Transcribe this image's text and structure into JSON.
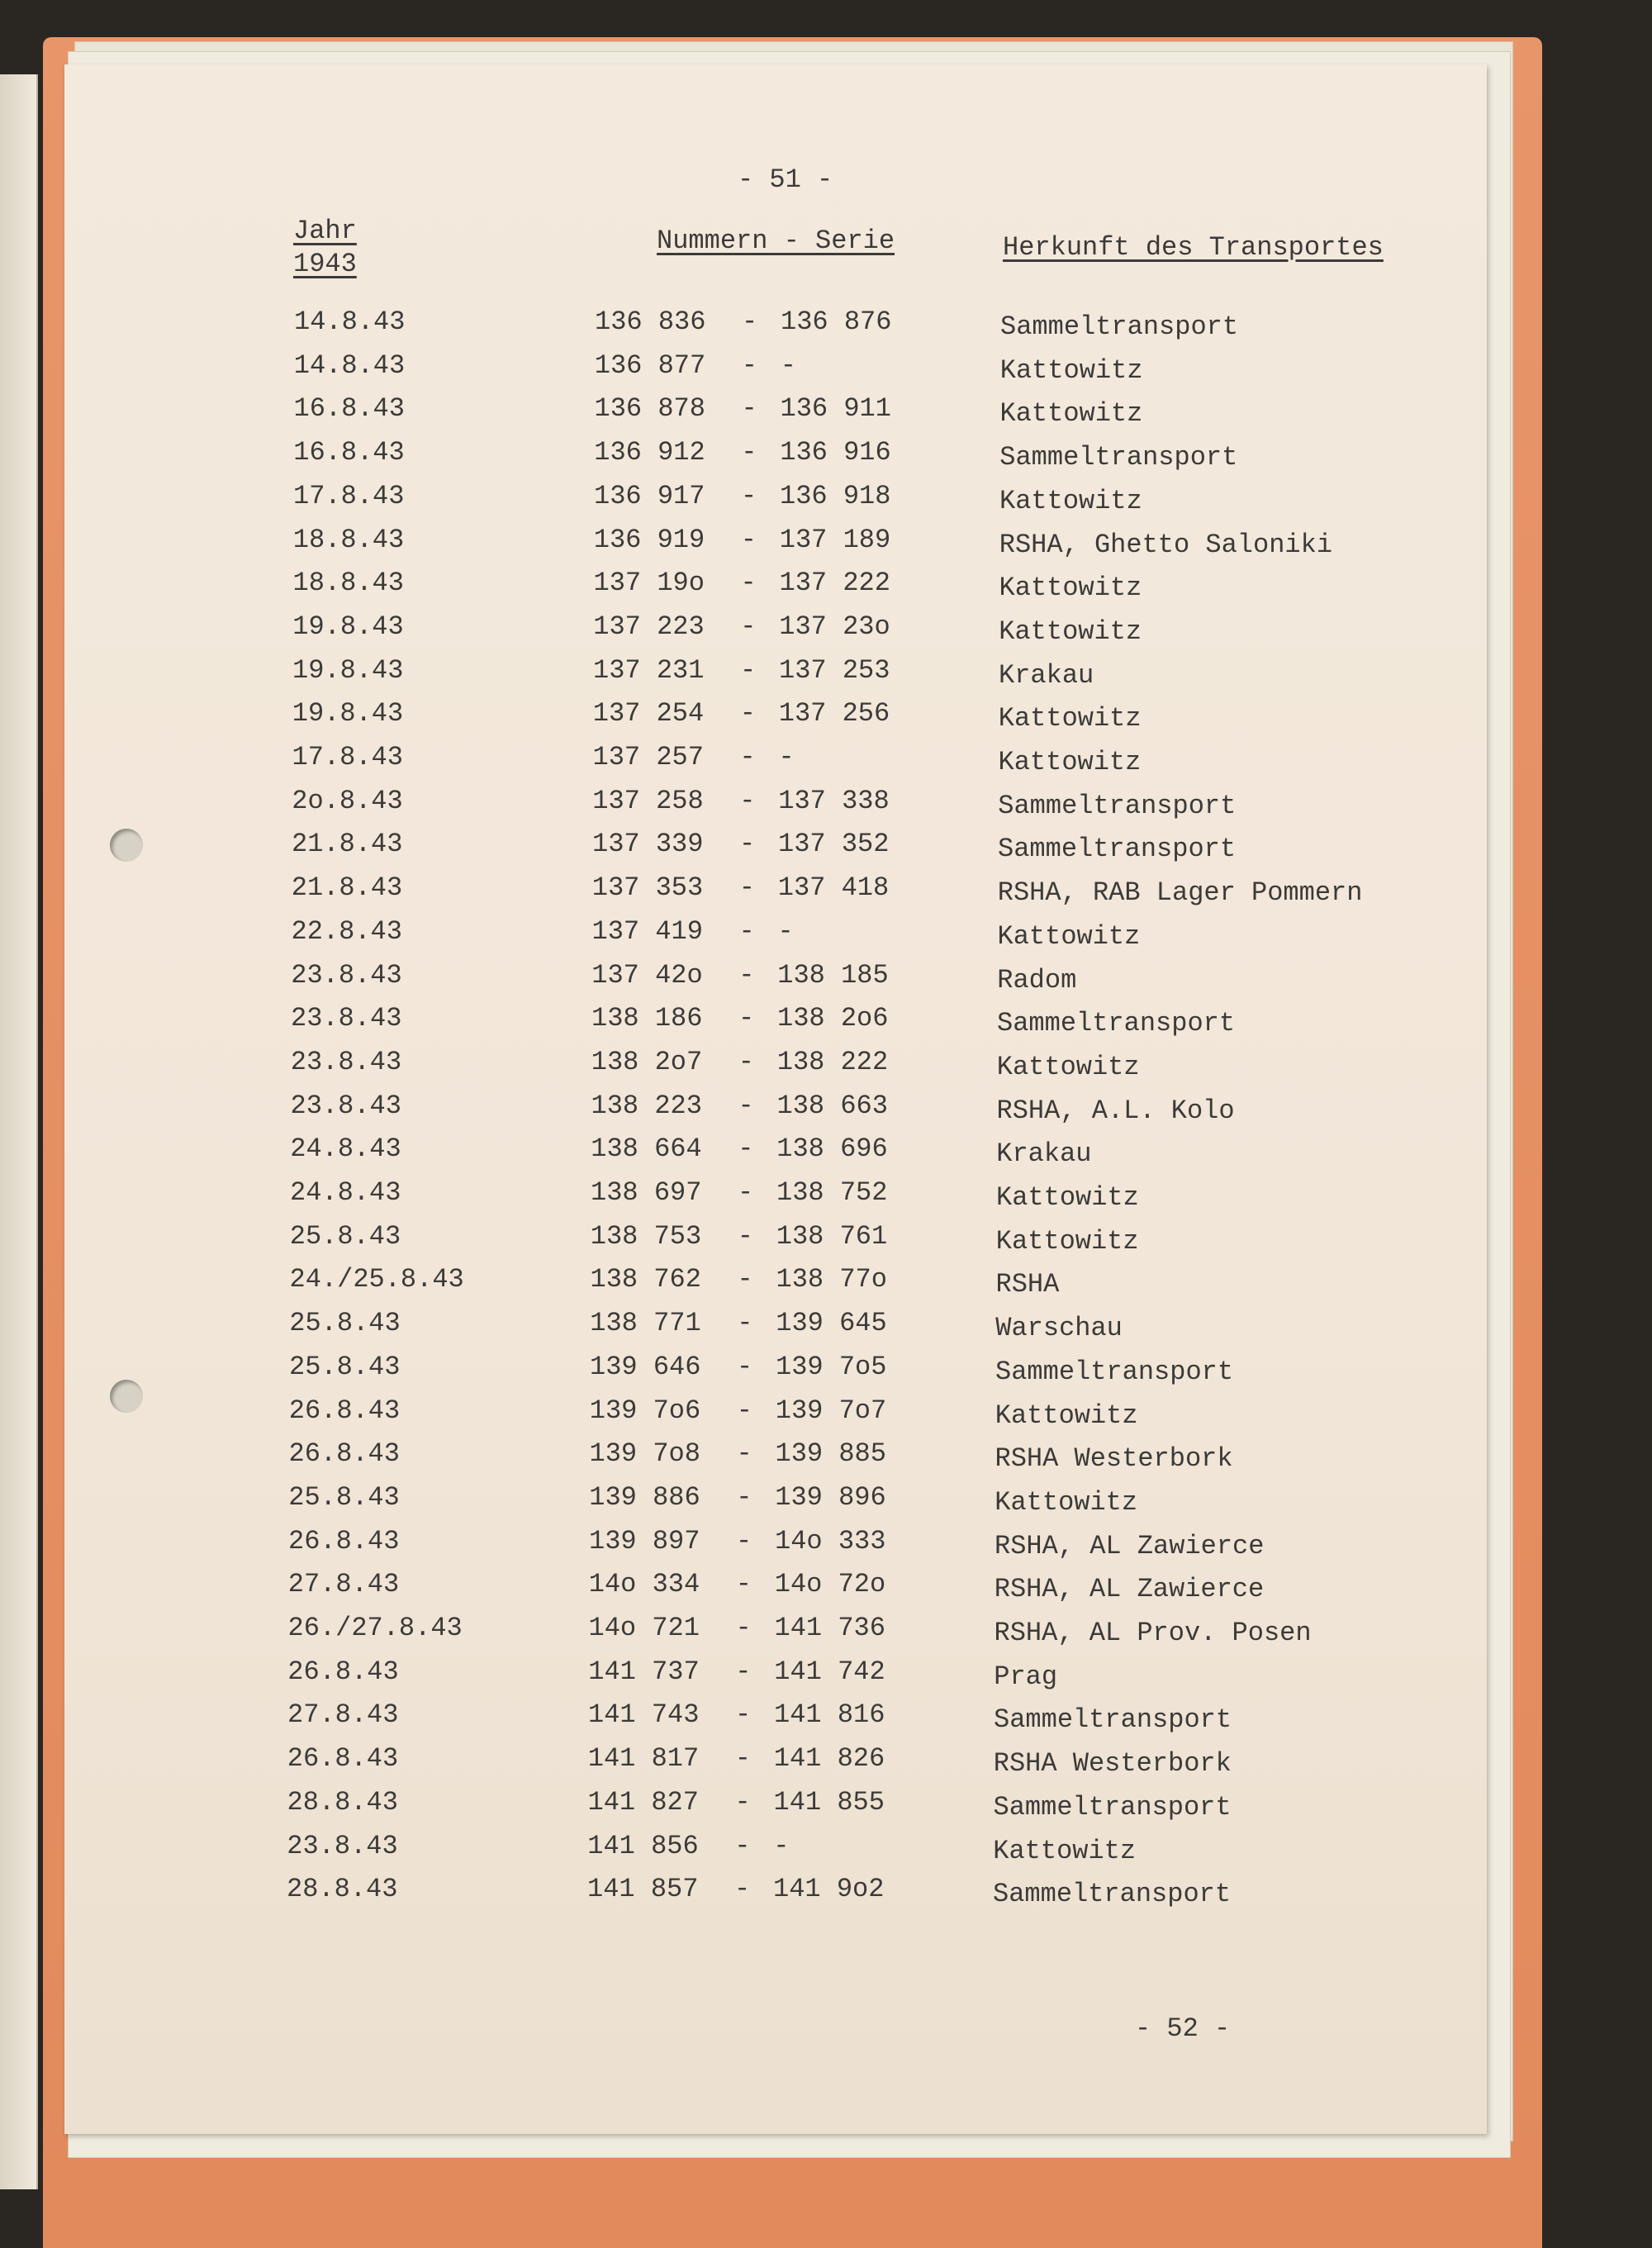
{
  "page_top": "- 51 -",
  "page_bottom": "- 52 -",
  "headers": {
    "year": "Jahr",
    "year_value": "1943",
    "numbers": "Nummern - Serie",
    "origin": "Herkunft des Transportes"
  },
  "rows": [
    {
      "date": "14.8.43",
      "from": "136 836",
      "to": "136 876",
      "origin": "Sammeltransport"
    },
    {
      "date": "14.8.43",
      "from": "136 877",
      "to": "-",
      "origin": "Kattowitz"
    },
    {
      "date": "16.8.43",
      "from": "136 878",
      "to": "136 911",
      "origin": "Kattowitz"
    },
    {
      "date": "16.8.43",
      "from": "136 912",
      "to": "136 916",
      "origin": "Sammeltransport"
    },
    {
      "date": "17.8.43",
      "from": "136 917",
      "to": "136 918",
      "origin": "Kattowitz"
    },
    {
      "date": "18.8.43",
      "from": "136 919",
      "to": "137 189",
      "origin": "RSHA, Ghetto Saloniki"
    },
    {
      "date": "18.8.43",
      "from": "137 19o",
      "to": "137 222",
      "origin": "Kattowitz"
    },
    {
      "date": "19.8.43",
      "from": "137 223",
      "to": "137 23o",
      "origin": "Kattowitz"
    },
    {
      "date": "19.8.43",
      "from": "137 231",
      "to": "137 253",
      "origin": "Krakau"
    },
    {
      "date": "19.8.43",
      "from": "137 254",
      "to": "137 256",
      "origin": "Kattowitz"
    },
    {
      "date": "17.8.43",
      "from": "137 257",
      "to": "-",
      "origin": "Kattowitz"
    },
    {
      "date": "2o.8.43",
      "from": "137 258",
      "to": "137 338",
      "origin": "Sammeltransport"
    },
    {
      "date": "21.8.43",
      "from": "137 339",
      "to": "137 352",
      "origin": "Sammeltransport"
    },
    {
      "date": "21.8.43",
      "from": "137 353",
      "to": "137 418",
      "origin": "RSHA, RAB Lager Pommern"
    },
    {
      "date": "22.8.43",
      "from": "137 419",
      "to": "-",
      "origin": "Kattowitz"
    },
    {
      "date": "23.8.43",
      "from": "137 42o",
      "to": "138 185",
      "origin": "Radom"
    },
    {
      "date": "23.8.43",
      "from": "138 186",
      "to": "138 2o6",
      "origin": "Sammeltransport"
    },
    {
      "date": "23.8.43",
      "from": "138 2o7",
      "to": "138 222",
      "origin": "Kattowitz"
    },
    {
      "date": "23.8.43",
      "from": "138 223",
      "to": "138 663",
      "origin": "RSHA, A.L. Kolo"
    },
    {
      "date": "24.8.43",
      "from": "138 664",
      "to": "138 696",
      "origin": "Krakau"
    },
    {
      "date": "24.8.43",
      "from": "138 697",
      "to": "138 752",
      "origin": "Kattowitz"
    },
    {
      "date": "25.8.43",
      "from": "138 753",
      "to": "138 761",
      "origin": "Kattowitz"
    },
    {
      "date": "24./25.8.43",
      "from": "138 762",
      "to": "138 77o",
      "origin": "RSHA"
    },
    {
      "date": "25.8.43",
      "from": "138 771",
      "to": "139 645",
      "origin": "Warschau"
    },
    {
      "date": "25.8.43",
      "from": "139 646",
      "to": "139 7o5",
      "origin": "Sammeltransport"
    },
    {
      "date": "26.8.43",
      "from": "139 7o6",
      "to": "139 7o7",
      "origin": "Kattowitz"
    },
    {
      "date": "26.8.43",
      "from": "139 7o8",
      "to": "139 885",
      "origin": "RSHA Westerbork"
    },
    {
      "date": "25.8.43",
      "from": "139 886",
      "to": "139 896",
      "origin": "Kattowitz"
    },
    {
      "date": "26.8.43",
      "from": "139 897",
      "to": "14o 333",
      "origin": "RSHA, AL Zawierce"
    },
    {
      "date": "27.8.43",
      "from": "14o 334",
      "to": "14o 72o",
      "origin": "RSHA, AL Zawierce"
    },
    {
      "date": "26./27.8.43",
      "from": "14o 721",
      "to": "141 736",
      "origin": "RSHA, AL Prov. Posen"
    },
    {
      "date": "26.8.43",
      "from": "141 737",
      "to": "141 742",
      "origin": "Prag"
    },
    {
      "date": "27.8.43",
      "from": "141 743",
      "to": "141 816",
      "origin": "Sammeltransport"
    },
    {
      "date": "26.8.43",
      "from": "141 817",
      "to": "141 826",
      "origin": "RSHA Westerbork"
    },
    {
      "date": "28.8.43",
      "from": "141 827",
      "to": "141 855",
      "origin": "Sammeltransport"
    },
    {
      "date": "23.8.43",
      "from": "141 856",
      "to": "-",
      "origin": "Kattowitz"
    },
    {
      "date": "28.8.43",
      "from": "141 857",
      "to": "141 9o2",
      "origin": "Sammeltransport"
    }
  ]
}
